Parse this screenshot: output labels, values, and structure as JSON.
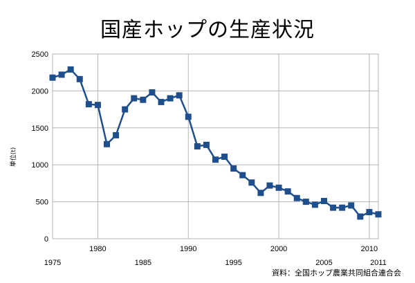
{
  "chart_data": {
    "type": "line",
    "title": "国産ホップの生産状況",
    "ylabel": "単位(t)",
    "xlabel": "",
    "source_note": "資料：全国ホップ農業共同組合連合会",
    "ylim": [
      0,
      2500
    ],
    "y_ticks": [
      0,
      500,
      1000,
      1500,
      2000,
      2500
    ],
    "xlim": [
      1975,
      2011
    ],
    "x_tick_labels_lower": [
      "1975",
      "1985",
      "1995",
      "2005",
      "2011"
    ],
    "x_tick_labels_upper": [
      "1980",
      "1990",
      "2000",
      "2010"
    ],
    "grid": true,
    "series": [
      {
        "color": "#1f4e8c",
        "x": [
          1975,
          1976,
          1977,
          1978,
          1979,
          1980,
          1981,
          1982,
          1983,
          1984,
          1985,
          1986,
          1987,
          1988,
          1989,
          1990,
          1991,
          1992,
          1993,
          1994,
          1995,
          1996,
          1997,
          1998,
          1999,
          2000,
          2001,
          2002,
          2003,
          2004,
          2005,
          2006,
          2007,
          2008,
          2009,
          2010,
          2011
        ],
        "y": [
          2180,
          2220,
          2290,
          2160,
          1820,
          1810,
          1280,
          1400,
          1750,
          1900,
          1880,
          1980,
          1850,
          1900,
          1940,
          1650,
          1250,
          1270,
          1070,
          1110,
          950,
          860,
          760,
          620,
          720,
          690,
          640,
          550,
          500,
          460,
          510,
          420,
          420,
          450,
          300,
          360,
          330
        ]
      }
    ]
  }
}
